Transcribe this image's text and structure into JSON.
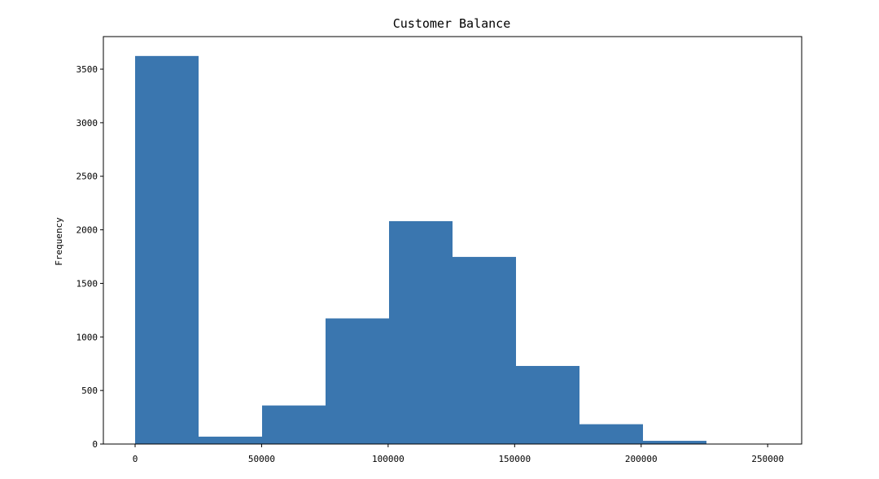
{
  "chart_data": {
    "type": "bar",
    "subtype": "histogram",
    "title": "Customer Balance",
    "xlabel": "",
    "ylabel": "Frequency",
    "bins": [
      {
        "x0": 0,
        "x1": 25089.8,
        "count": 3623
      },
      {
        "x0": 25089.8,
        "x1": 50179.6,
        "count": 69
      },
      {
        "x0": 50179.6,
        "x1": 75269.4,
        "count": 360
      },
      {
        "x0": 75269.4,
        "x1": 100359.2,
        "count": 1173
      },
      {
        "x0": 100359.2,
        "x1": 125449.0,
        "count": 2081
      },
      {
        "x0": 125449.0,
        "x1": 150538.8,
        "count": 1747
      },
      {
        "x0": 150538.8,
        "x1": 175628.6,
        "count": 729
      },
      {
        "x0": 175628.6,
        "x1": 200718.4,
        "count": 185
      },
      {
        "x0": 200718.4,
        "x1": 225808.2,
        "count": 30
      },
      {
        "x0": 225808.2,
        "x1": 250898.1,
        "count": 3
      }
    ],
    "xlim": [
      -12545,
      263443
    ],
    "ylim": [
      0,
      3804
    ],
    "xticks": [
      0,
      50000,
      100000,
      150000,
      200000,
      250000
    ],
    "xtick_labels": [
      "0",
      "50000",
      "100000",
      "150000",
      "200000",
      "250000"
    ],
    "yticks": [
      0,
      500,
      1000,
      1500,
      2000,
      2500,
      3000,
      3500
    ],
    "ytick_labels": [
      "0",
      "500",
      "1000",
      "1500",
      "2000",
      "2500",
      "3000",
      "3500"
    ],
    "grid": false,
    "legend": "none",
    "bar_color": "#3a76af",
    "axis_color": "#000000"
  }
}
